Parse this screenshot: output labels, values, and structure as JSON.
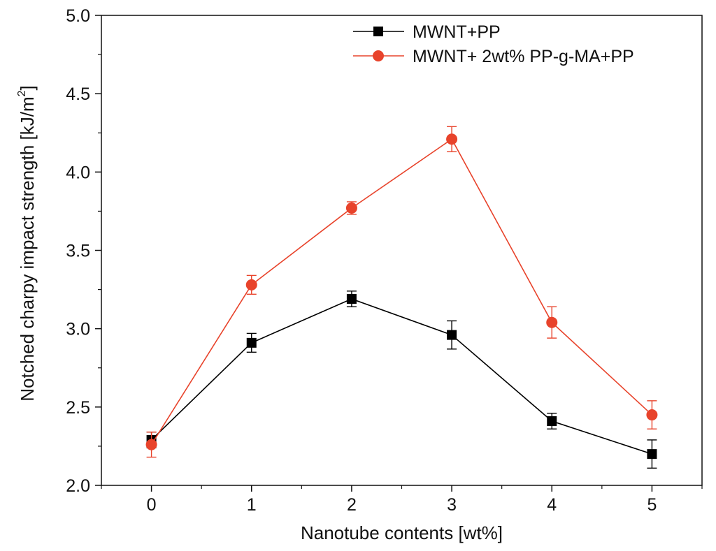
{
  "chart_data": {
    "type": "line",
    "title": "",
    "xlabel": "Nanotube contents [wt%]",
    "ylabel_main": "Notched charpy impact strength [kJ/m",
    "ylabel_sup": "2",
    "ylabel_close": "]",
    "xlim": [
      -0.5,
      5.5
    ],
    "ylim": [
      2.0,
      5.0
    ],
    "x_ticks": [
      0,
      1,
      2,
      3,
      4,
      5
    ],
    "x_tick_labels": [
      "0",
      "1",
      "2",
      "3",
      "4",
      "5"
    ],
    "y_ticks": [
      2.0,
      2.5,
      3.0,
      3.5,
      4.0,
      4.5,
      5.0
    ],
    "y_tick_labels": [
      "2.0",
      "2.5",
      "3.0",
      "3.5",
      "4.0",
      "4.5",
      "5.0"
    ],
    "grid": false,
    "legend_position": "top-right",
    "x": [
      0,
      1,
      2,
      3,
      4,
      5
    ],
    "series": [
      {
        "name": "MWNT+PP",
        "marker": "square",
        "color": "#000000",
        "values": [
          2.29,
          2.91,
          3.19,
          2.96,
          2.41,
          2.2
        ],
        "errors": [
          0.05,
          0.06,
          0.05,
          0.09,
          0.05,
          0.09
        ]
      },
      {
        "name": "MWNT+ 2wt% PP-g-MA+PP",
        "marker": "circle",
        "color": "#e8432b",
        "values": [
          2.26,
          3.28,
          3.77,
          4.21,
          3.04,
          2.45
        ],
        "errors": [
          0.08,
          0.06,
          0.04,
          0.08,
          0.1,
          0.09
        ]
      }
    ]
  }
}
